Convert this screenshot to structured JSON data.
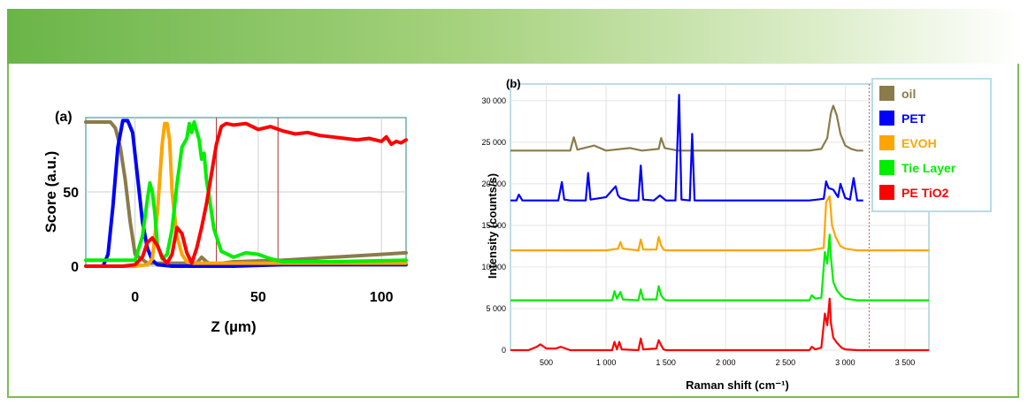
{
  "chart_data": [
    {
      "panel_label": "(a)",
      "type": "line",
      "xlabel": "Z (µm)",
      "ylabel": "Score (a.u.)",
      "xlim": [
        -20,
        110
      ],
      "ylim": [
        0,
        100
      ],
      "x_ticks": [
        0,
        50,
        100
      ],
      "y_ticks": [
        0,
        50
      ],
      "vertical_markers": [
        33,
        58
      ],
      "series": [
        {
          "color": "#8b7b4b",
          "x": [
            -20,
            -10,
            -8,
            -6,
            -4,
            -2,
            0,
            5,
            20,
            25,
            27,
            29,
            31,
            40,
            60,
            80,
            100,
            110
          ],
          "y": [
            97,
            97,
            93,
            80,
            58,
            30,
            8,
            2,
            2,
            2,
            6,
            3,
            1,
            3,
            4,
            6,
            8,
            9
          ]
        },
        {
          "color": "#0000ff",
          "x": [
            -20,
            -13,
            -11,
            -9,
            -7,
            -5,
            -3,
            -1,
            1,
            3,
            5,
            7,
            9,
            15,
            20,
            40,
            60,
            80,
            110
          ],
          "y": [
            0,
            0,
            8,
            40,
            80,
            98,
            98,
            90,
            60,
            30,
            12,
            4,
            1,
            0,
            0,
            0,
            1,
            1,
            1
          ]
        },
        {
          "color": "#ffa500",
          "x": [
            -20,
            0,
            5,
            7,
            9,
            11,
            12,
            13,
            14,
            15,
            17,
            19,
            21,
            23,
            40,
            110
          ],
          "y": [
            0,
            0,
            1,
            5,
            35,
            82,
            96,
            96,
            85,
            50,
            20,
            8,
            3,
            2,
            2,
            2
          ]
        },
        {
          "color": "#00ee00",
          "x": [
            -20,
            0,
            3,
            5,
            6,
            7,
            8,
            9,
            11,
            13,
            15,
            17,
            19,
            21,
            22,
            23,
            24,
            26,
            27,
            28,
            29,
            30,
            32,
            35,
            40,
            45,
            50,
            55,
            60,
            80,
            110
          ],
          "y": [
            4,
            4,
            20,
            45,
            56,
            50,
            36,
            15,
            5,
            8,
            25,
            55,
            80,
            86,
            96,
            90,
            97,
            85,
            72,
            76,
            58,
            48,
            25,
            10,
            6,
            9,
            8,
            5,
            3,
            3,
            4
          ]
        },
        {
          "color": "#ff0000",
          "x": [
            -20,
            -5,
            0,
            3,
            5,
            7,
            9,
            11,
            13,
            15,
            17,
            19,
            21,
            23,
            25,
            27,
            29,
            31,
            33,
            35,
            37,
            40,
            45,
            50,
            55,
            60,
            65,
            70,
            75,
            80,
            85,
            90,
            95,
            100,
            102,
            104,
            106,
            108,
            110
          ],
          "y": [
            0,
            0,
            1,
            6,
            16,
            19,
            14,
            6,
            2,
            8,
            26,
            22,
            9,
            2,
            12,
            26,
            42,
            62,
            82,
            94,
            96,
            95,
            96,
            92,
            94,
            91,
            89,
            90,
            88,
            87,
            86,
            85,
            86,
            84,
            87,
            82,
            84,
            83,
            85
          ]
        }
      ]
    },
    {
      "panel_label": "(b)",
      "type": "line",
      "xlabel": "Raman shift (cm⁻¹)",
      "ylabel": "Intensity (counts/s)",
      "xlim": [
        200,
        3700
      ],
      "ylim": [
        0,
        32000
      ],
      "x_ticks": [
        500,
        1000,
        1500,
        2000,
        2500,
        3000,
        3500
      ],
      "x_tick_labels": [
        "500",
        "1 000",
        "1 500",
        "2 000",
        "2 500",
        "3 000",
        "3 500"
      ],
      "y_ticks": [
        0,
        5000,
        10000,
        15000,
        20000,
        25000,
        30000
      ],
      "y_tick_labels": [
        "0",
        "5 000",
        "10 000",
        "15 000",
        "20 000",
        "25 000",
        "30 000"
      ],
      "vertical_marker": 3200,
      "legend_position": "top-right",
      "series": [
        {
          "name": "oil",
          "color": "#8b7b4b",
          "x": [
            200,
            700,
            730,
            760,
            900,
            1000,
            1200,
            1300,
            1440,
            1460,
            1490,
            1600,
            2700,
            2800,
            2850,
            2880,
            2900,
            2930,
            2960,
            3000,
            3050,
            3100,
            3150
          ],
          "y": [
            24000,
            24000,
            25600,
            24100,
            24600,
            24000,
            24300,
            24000,
            24200,
            25500,
            24300,
            24000,
            24000,
            24200,
            25500,
            28500,
            29400,
            28200,
            26000,
            24600,
            24200,
            24000,
            24000
          ]
        },
        {
          "name": "PET",
          "color": "#0000ff",
          "x": [
            200,
            250,
            270,
            300,
            600,
            630,
            650,
            700,
            830,
            850,
            870,
            1000,
            1080,
            1100,
            1120,
            1200,
            1270,
            1290,
            1310,
            1400,
            1450,
            1500,
            1580,
            1610,
            1630,
            1700,
            1720,
            1740,
            2700,
            2820,
            2840,
            2860,
            2900,
            2940,
            2960,
            3000,
            3040,
            3070,
            3100,
            3150
          ],
          "y": [
            18000,
            18000,
            18700,
            18000,
            18000,
            20200,
            18100,
            18000,
            18000,
            21300,
            18100,
            18400,
            19700,
            18600,
            18300,
            18000,
            18000,
            22200,
            18100,
            18000,
            18600,
            18000,
            18000,
            30700,
            18100,
            18000,
            26000,
            18000,
            18000,
            18200,
            20300,
            19500,
            19300,
            18400,
            20000,
            18300,
            18100,
            20700,
            18000,
            18000
          ]
        },
        {
          "name": "EVOH",
          "color": "#ffa500",
          "x": [
            200,
            1000,
            1100,
            1120,
            1140,
            1270,
            1290,
            1310,
            1420,
            1440,
            1460,
            1480,
            1500,
            1700,
            2700,
            2820,
            2840,
            2870,
            2890,
            2920,
            2960,
            3000,
            3100,
            3700
          ],
          "y": [
            12000,
            12000,
            12200,
            13000,
            12200,
            12000,
            13300,
            12100,
            12100,
            13600,
            12600,
            12100,
            12000,
            12000,
            12000,
            12300,
            17800,
            18500,
            15000,
            13600,
            12500,
            12200,
            12000,
            12000
          ]
        },
        {
          "name": "Tie Layer",
          "color": "#00ee00",
          "x": [
            200,
            1000,
            1050,
            1070,
            1090,
            1120,
            1140,
            1270,
            1290,
            1310,
            1420,
            1440,
            1460,
            1480,
            1500,
            2700,
            2720,
            2750,
            2800,
            2830,
            2850,
            2870,
            2880,
            2900,
            2930,
            2970,
            3000,
            3100,
            3700
          ],
          "y": [
            6000,
            6000,
            6000,
            7100,
            6200,
            7000,
            6100,
            6000,
            7300,
            6100,
            6100,
            7700,
            6600,
            6200,
            6000,
            6000,
            6600,
            6200,
            6300,
            11800,
            10400,
            13900,
            11200,
            8200,
            7200,
            6500,
            6200,
            6000,
            6000
          ]
        },
        {
          "name": "PE TiO2",
          "color": "#ff0000",
          "x": [
            200,
            350,
            420,
            450,
            500,
            580,
            620,
            700,
            1000,
            1050,
            1070,
            1090,
            1110,
            1130,
            1270,
            1290,
            1310,
            1420,
            1440,
            1460,
            1480,
            1500,
            2700,
            2720,
            2750,
            2800,
            2830,
            2850,
            2870,
            2880,
            2900,
            2930,
            2970,
            3000,
            3100,
            3700
          ],
          "y": [
            0,
            0,
            400,
            700,
            200,
            200,
            400,
            0,
            0,
            0,
            1000,
            100,
            1000,
            100,
            0,
            1400,
            100,
            200,
            1200,
            600,
            100,
            0,
            0,
            400,
            100,
            300,
            4400,
            3000,
            6200,
            3300,
            1500,
            900,
            300,
            100,
            0,
            0
          ]
        }
      ]
    }
  ]
}
